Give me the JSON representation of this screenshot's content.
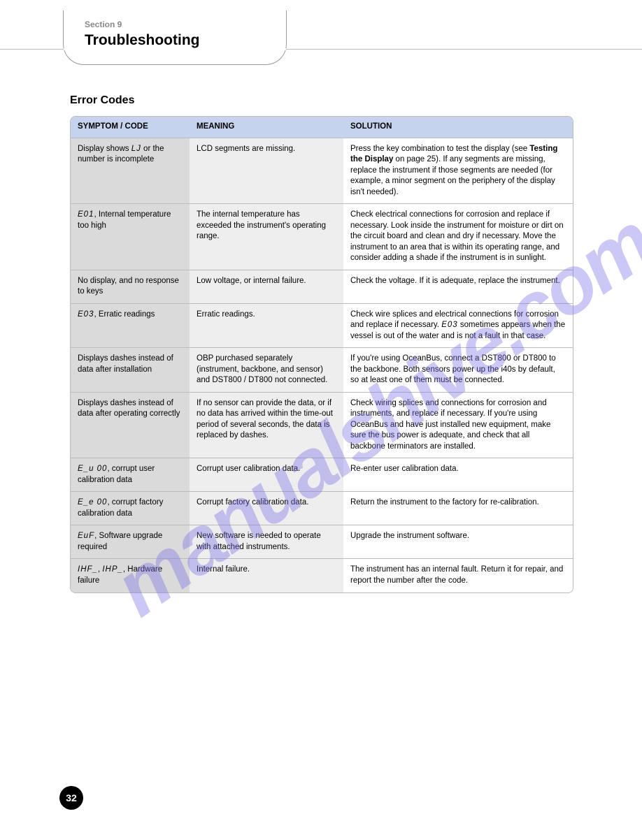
{
  "header": {
    "section_label": "Section 9",
    "title": "Troubleshooting",
    "subtitle": "Error Codes"
  },
  "table": {
    "columns": [
      "SYMPTOM / CODE",
      "MEANING",
      "SOLUTION"
    ],
    "rows": [
      {
        "symptom": "Display shows <span class='seg'>LJ</span> or the number is incomplete",
        "meaning": "LCD segments are missing.",
        "solution": "Press the key combination to test the display (see <b>Testing the Display</b> on page 25). If any segments are missing, replace the instrument if those segments are needed (for example, a minor segment on the periphery of the display isn't needed)."
      },
      {
        "symptom": "<span class='seg'>E01</span>, Internal temperature too high",
        "meaning": "The internal temperature has exceeded the instrument's operating range.",
        "solution": "Check electrical connections for corrosion and replace if necessary. Look inside the instrument for moisture or dirt on the circuit board and clean and dry if necessary. Move the instrument to an area that is within its operating range, and consider adding a shade if the instrument is in sunlight."
      },
      {
        "symptom": "No display, and no response to keys",
        "meaning": "Low voltage, or internal failure.",
        "solution": "Check the voltage. If it is adequate, replace the instrument."
      },
      {
        "symptom": "<span class='seg'>E03</span>, Erratic readings",
        "meaning": "Erratic readings.",
        "solution": "Check wire splices and electrical connections for corrosion and replace if necessary. <span class='seg'>E03</span> sometimes appears when the vessel is out of the water and is not a fault in that case."
      },
      {
        "symptom": "Displays dashes instead of data after installation",
        "meaning": "OBP purchased separately (instrument, backbone, and sensor) and DST800 / DT800 not connected.",
        "solution": "If you're using OceanBus, connect a DST800 or DT800 to the backbone. Both sensors power up the i40s by default, so at least one of them must be connected."
      },
      {
        "symptom": "Displays dashes instead of data after operating correctly",
        "meaning": "If no sensor can provide the data, or if no data has arrived within the time-out period of several seconds, the data is replaced by dashes.",
        "solution": "Check wiring splices and connections for corrosion and instruments, and replace if necessary. If you're using OceanBus and have just installed new equipment, make sure the bus power is adequate, and check that all backbone terminators are installed."
      },
      {
        "symptom": "<span class='seg'>E_u 00</span>, corrupt user calibration data",
        "meaning": "Corrupt user calibration data.",
        "solution": "Re-enter user calibration data."
      },
      {
        "symptom": "<span class='seg'>E_e 00</span>, corrupt factory calibration data",
        "meaning": "Corrupt factory calibration data.",
        "solution": "Return the instrument to the factory for re-calibration."
      },
      {
        "symptom": "<span class='seg'>EuF</span>, Software upgrade required",
        "meaning": "New software is needed to operate with attached instruments.",
        "solution": "Upgrade the instrument software."
      },
      {
        "symptom": "<span class='seg'>IHF_</span>, <span class='seg'>IHP_</span>, Hardware failure",
        "meaning": "Internal failure.",
        "solution": "The instrument has an internal fault. Return it for repair, and report the number after the code."
      }
    ]
  },
  "page_number": "32",
  "watermark_text": "manualshive.com",
  "colors": {
    "header_bg": "#c6d3ef",
    "col_a_bg": "#dadada",
    "col_b_bg": "#eeeeee",
    "border": "#bbbbbb",
    "watermark": "rgba(120,110,230,0.38)"
  }
}
